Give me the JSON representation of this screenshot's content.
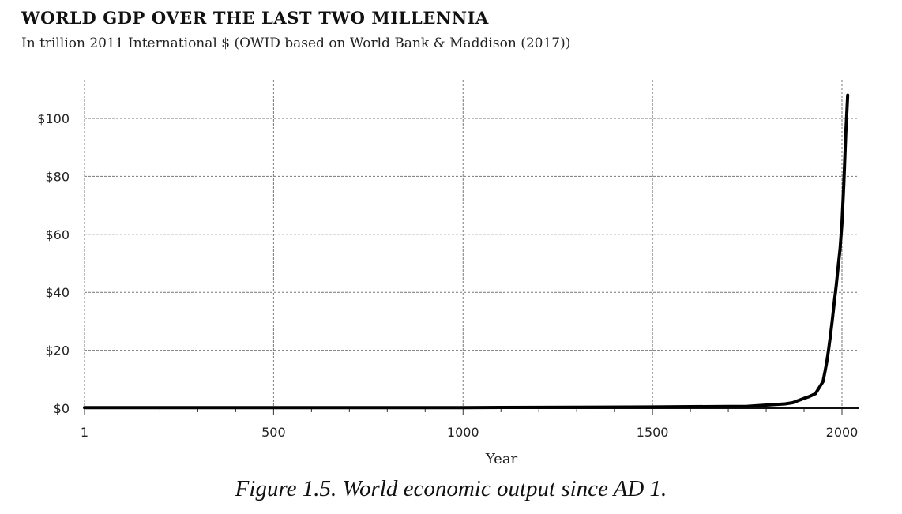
{
  "chart_data": {
    "type": "line",
    "title": "WORLD GDP OVER THE LAST TWO MILLENNIA",
    "subtitle": "In trillion 2011 International $ (OWID based on World Bank & Maddison (2017))",
    "xlabel": "Year",
    "ylabel": "",
    "xlim": [
      1,
      2015
    ],
    "ylim": [
      0,
      110
    ],
    "x_ticks": [
      1,
      500,
      1000,
      1500,
      2000
    ],
    "x_tick_labels": [
      "1",
      "500",
      "1000",
      "1500",
      "2000"
    ],
    "y_ticks": [
      0,
      20,
      40,
      60,
      80,
      100
    ],
    "y_tick_labels": [
      "$0",
      "$20",
      "$40",
      "$60",
      "$80",
      "$100"
    ],
    "grid": true,
    "legend": "none",
    "series": [
      {
        "x": [
          1,
          500,
          1000,
          1200,
          1500,
          1600,
          1700,
          1750,
          1800,
          1850,
          1870,
          1900,
          1913,
          1930,
          1950,
          1955,
          1960,
          1965,
          1970,
          1975,
          1980,
          1985,
          1990,
          1995,
          2000,
          2005,
          2010,
          2015
        ],
        "values": [
          0.18,
          0.19,
          0.21,
          0.3,
          0.43,
          0.55,
          0.6,
          0.65,
          1.1,
          1.5,
          1.9,
          3.4,
          4.0,
          5.0,
          9.2,
          12.5,
          16.0,
          20.5,
          25.5,
          31.0,
          37.0,
          42.5,
          49.0,
          55.0,
          64.0,
          78.0,
          95.0,
          108.0
        ]
      }
    ],
    "color": "#000000"
  },
  "caption": "Figure 1.5. World economic output since AD 1."
}
